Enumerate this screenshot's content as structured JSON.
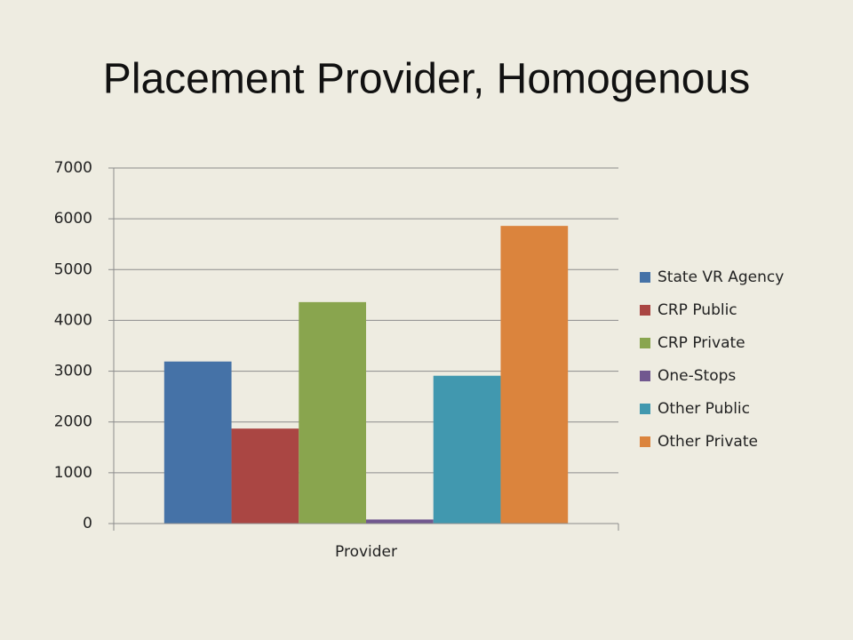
{
  "chart_data": {
    "type": "bar",
    "title": "Placement Provider, Homogenous",
    "categories": [
      "Provider"
    ],
    "series": [
      {
        "name": "State VR Agency",
        "color": "#4572a7",
        "values": [
          3190
        ]
      },
      {
        "name": "CRP Public",
        "color": "#aa4643",
        "values": [
          1870
        ]
      },
      {
        "name": "CRP Private",
        "color": "#89a54e",
        "values": [
          4360
        ]
      },
      {
        "name": "One-Stops",
        "color": "#71588f",
        "values": [
          80
        ]
      },
      {
        "name": "Other Public",
        "color": "#4198af",
        "values": [
          2910
        ]
      },
      {
        "name": "Other Private",
        "color": "#db843d",
        "values": [
          5860
        ]
      }
    ],
    "ylim": [
      0,
      7000
    ],
    "yticks": [
      0,
      1000,
      2000,
      3000,
      4000,
      5000,
      6000,
      7000
    ],
    "grid": true,
    "legend": "right"
  }
}
